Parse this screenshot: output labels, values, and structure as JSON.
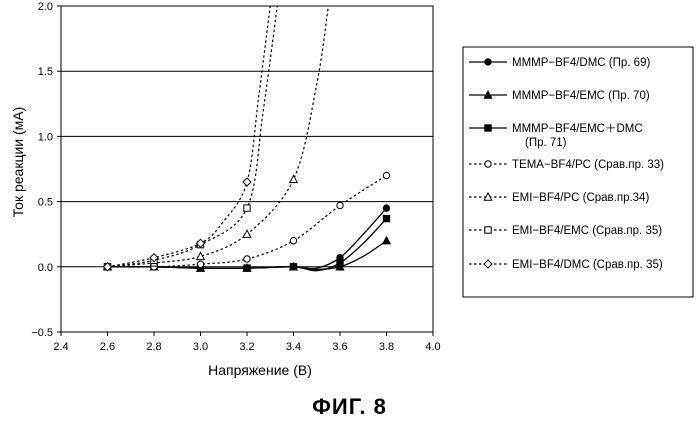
{
  "figure_label": "ФИГ. 8",
  "chart_data": {
    "type": "line",
    "xlabel": "Напряжение (В)",
    "ylabel": "Ток реакции (мА)",
    "xlim": [
      2.4,
      4.0
    ],
    "ylim": [
      -0.5,
      2.0
    ],
    "xticks": [
      "2.4",
      "2.6",
      "2.8",
      "3.0",
      "3.2",
      "3.4",
      "3.6",
      "3.8",
      "4.0"
    ],
    "yticks": [
      "2.0",
      "1.5",
      "1.0",
      "0.5",
      "0.0",
      "−0.5"
    ],
    "grid": "horizontal",
    "legend_position": "right",
    "series": [
      {
        "name": "MMMP−BF4/DMC  (Пр. 69)",
        "marker": "circle-filled",
        "line": "solid",
        "x": [
          2.6,
          2.8,
          3.0,
          3.2,
          3.4,
          3.5,
          3.6,
          3.7,
          3.8
        ],
        "y": [
          0.0,
          0.0,
          -0.01,
          -0.01,
          0.0,
          -0.01,
          0.07,
          0.25,
          0.45
        ],
        "markers_x": [
          2.6,
          2.8,
          3.0,
          3.2,
          3.4,
          3.6,
          3.8
        ],
        "markers_y": [
          0.0,
          0.0,
          -0.01,
          -0.01,
          0.0,
          0.07,
          0.45
        ]
      },
      {
        "name": "MMMP−BF4/EMC  (Пр. 70)",
        "marker": "triangle-filled",
        "line": "solid",
        "x": [
          2.6,
          2.8,
          3.0,
          3.2,
          3.4,
          3.5,
          3.6,
          3.7,
          3.8
        ],
        "y": [
          0.0,
          0.0,
          -0.01,
          -0.01,
          0.0,
          -0.02,
          0.0,
          0.08,
          0.2
        ],
        "markers_x": [
          2.6,
          2.8,
          3.0,
          3.2,
          3.4,
          3.6,
          3.8
        ],
        "markers_y": [
          0.0,
          0.0,
          -0.01,
          -0.01,
          0.0,
          0.0,
          0.2
        ]
      },
      {
        "name": "MMMP−BF4/EMC＋DMC",
        "name2": "(Пр. 71)",
        "marker": "square-filled",
        "line": "solid",
        "x": [
          2.6,
          2.8,
          3.0,
          3.2,
          3.4,
          3.5,
          3.6,
          3.7,
          3.8
        ],
        "y": [
          0.0,
          0.0,
          -0.01,
          -0.01,
          0.0,
          -0.03,
          0.03,
          0.18,
          0.37
        ],
        "markers_x": [
          2.6,
          2.8,
          3.0,
          3.2,
          3.4,
          3.6,
          3.8
        ],
        "markers_y": [
          0.0,
          0.0,
          -0.01,
          -0.01,
          0.0,
          0.03,
          0.37
        ]
      },
      {
        "name": "TEMA−BF4/PC (Срав.пр. 33)",
        "marker": "circle-open",
        "line": "dotted",
        "x": [
          2.6,
          2.8,
          3.0,
          3.2,
          3.4,
          3.6,
          3.8
        ],
        "y": [
          0.0,
          0.0,
          0.02,
          0.06,
          0.2,
          0.47,
          0.7
        ],
        "markers_x": [
          2.6,
          2.8,
          3.0,
          3.2,
          3.4,
          3.6,
          3.8
        ],
        "markers_y": [
          0.0,
          0.0,
          0.02,
          0.06,
          0.2,
          0.47,
          0.7
        ]
      },
      {
        "name": "EMI−BF4/PC     (Срав.пр.34)",
        "marker": "triangle-open",
        "line": "dotted",
        "x": [
          2.6,
          2.8,
          3.0,
          3.2,
          3.4,
          3.5,
          3.55
        ],
        "y": [
          0.0,
          0.03,
          0.08,
          0.25,
          0.67,
          1.4,
          2.0
        ],
        "markers_x": [
          2.6,
          2.8,
          3.0,
          3.2,
          3.4
        ],
        "markers_y": [
          0.0,
          0.03,
          0.08,
          0.25,
          0.67
        ]
      },
      {
        "name": "EMI−BF4/EMC   (Срав.пр. 35)",
        "marker": "square-open",
        "line": "dotted",
        "x": [
          2.6,
          2.8,
          3.0,
          3.2,
          3.27,
          3.33
        ],
        "y": [
          0.0,
          0.05,
          0.17,
          0.45,
          1.2,
          2.0
        ],
        "markers_x": [
          2.6,
          2.8,
          3.0,
          3.2
        ],
        "markers_y": [
          0.0,
          0.05,
          0.17,
          0.45
        ]
      },
      {
        "name": "EMI−BF4/DMC   (Срав.пр. 35)",
        "marker": "diamond-open",
        "line": "dotted",
        "x": [
          2.6,
          2.8,
          3.0,
          3.1,
          3.2,
          3.25,
          3.3
        ],
        "y": [
          0.0,
          0.07,
          0.18,
          0.35,
          0.65,
          1.3,
          2.0
        ],
        "markers_x": [
          2.6,
          2.8,
          3.0,
          3.2
        ],
        "markers_y": [
          0.0,
          0.07,
          0.18,
          0.65
        ]
      }
    ]
  }
}
